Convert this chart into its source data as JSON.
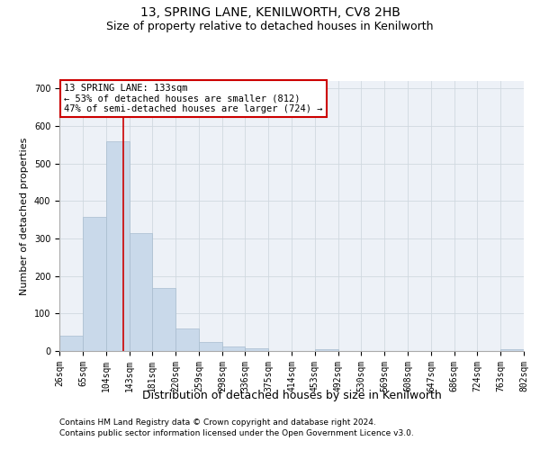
{
  "title": "13, SPRING LANE, KENILWORTH, CV8 2HB",
  "subtitle": "Size of property relative to detached houses in Kenilworth",
  "xlabel": "Distribution of detached houses by size in Kenilworth",
  "ylabel": "Number of detached properties",
  "footnote1": "Contains HM Land Registry data © Crown copyright and database right 2024.",
  "footnote2": "Contains public sector information licensed under the Open Government Licence v3.0.",
  "bin_edges": [
    26,
    65,
    104,
    143,
    181,
    220,
    259,
    298,
    336,
    375,
    414,
    453,
    492,
    530,
    569,
    608,
    647,
    686,
    724,
    763,
    802
  ],
  "bar_heights": [
    40,
    358,
    560,
    315,
    168,
    60,
    23,
    11,
    8,
    0,
    0,
    5,
    0,
    0,
    0,
    0,
    0,
    0,
    0,
    6
  ],
  "bar_color": "#c9d9ea",
  "bar_edge_color": "#a8bccf",
  "grid_color": "#d0d8e0",
  "bg_color": "#edf1f7",
  "vline_x": 133,
  "vline_color": "#cc0000",
  "annotation_text": "13 SPRING LANE: 133sqm\n← 53% of detached houses are smaller (812)\n47% of semi-detached houses are larger (724) →",
  "annotation_box_color": "#ffffff",
  "annotation_border_color": "#cc0000",
  "ylim": [
    0,
    720
  ],
  "yticks": [
    0,
    100,
    200,
    300,
    400,
    500,
    600,
    700
  ],
  "title_fontsize": 10,
  "subtitle_fontsize": 9,
  "tick_fontsize": 7,
  "ylabel_fontsize": 8,
  "xlabel_fontsize": 9,
  "annotation_fontsize": 7.5,
  "footnote_fontsize": 6.5
}
